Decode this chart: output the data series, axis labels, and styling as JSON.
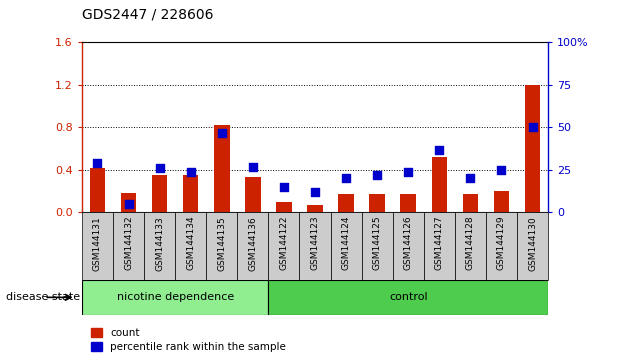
{
  "title": "GDS2447 / 228606",
  "categories": [
    "GSM144131",
    "GSM144132",
    "GSM144133",
    "GSM144134",
    "GSM144135",
    "GSM144136",
    "GSM144122",
    "GSM144123",
    "GSM144124",
    "GSM144125",
    "GSM144126",
    "GSM144127",
    "GSM144128",
    "GSM144129",
    "GSM144130"
  ],
  "count": [
    0.42,
    0.18,
    0.35,
    0.35,
    0.82,
    0.33,
    0.1,
    0.07,
    0.17,
    0.17,
    0.17,
    0.52,
    0.17,
    0.2,
    1.2
  ],
  "percentile": [
    29,
    5,
    26,
    24,
    47,
    27,
    15,
    12,
    20,
    22,
    24,
    37,
    20,
    25,
    50
  ],
  "group_labels": [
    "nicotine dependence",
    "control"
  ],
  "nicotine_color": "#90ee90",
  "control_color": "#4dcc4d",
  "bar_color": "#cc2200",
  "dot_color": "#0000cc",
  "ylim_left": [
    0,
    1.6
  ],
  "ylim_right": [
    0,
    100
  ],
  "yticks_left": [
    0,
    0.4,
    0.8,
    1.2,
    1.6
  ],
  "yticks_right": [
    0,
    25,
    50,
    75,
    100
  ],
  "bar_width": 0.5,
  "dot_size": 28,
  "xlabel": "disease state",
  "legend_count": "count",
  "legend_pct": "percentile rank within the sample",
  "tick_bg_color": "#cccccc",
  "fig_bg": "#ffffff"
}
